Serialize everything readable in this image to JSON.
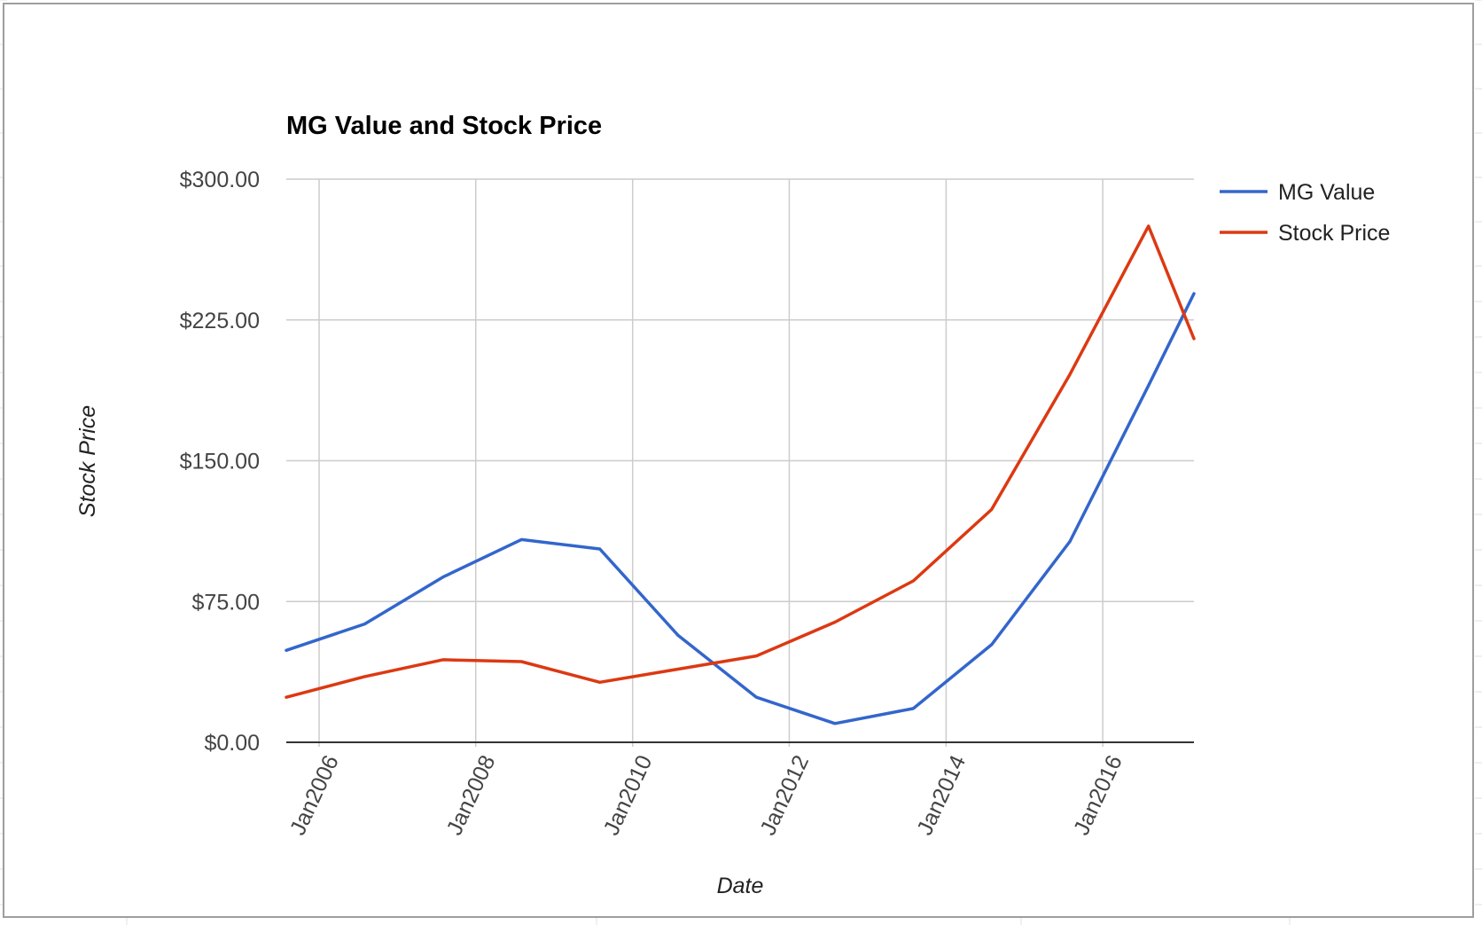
{
  "colors": {
    "mg_value": "#3366cc",
    "stock_price": "#dc3912",
    "grid": "#cccccc",
    "baseline": "#333333",
    "sheet_border": "#9e9e9e",
    "sheet_grid": "#e2e2e2"
  },
  "chart_data": {
    "type": "line",
    "title": "MG Value and Stock Price",
    "xlabel": "Date",
    "ylabel": "Stock Price",
    "y_ticks": [
      "$0.00",
      "$75.00",
      "$150.00",
      "$225.00",
      "$300.00"
    ],
    "y_tick_values": [
      0,
      75,
      150,
      225,
      300
    ],
    "ylim": [
      0,
      300
    ],
    "x_ticks": [
      "Jan2006",
      "Jan2008",
      "Jan2010",
      "Jan2012",
      "Jan2014",
      "Jan2016"
    ],
    "x_tick_dates": [
      "2006-01-01",
      "2008-01-01",
      "2010-01-01",
      "2012-01-01",
      "2014-01-01",
      "2016-01-01"
    ],
    "xlim": [
      "2005-08-01",
      "2017-03-01"
    ],
    "grid": true,
    "legend_position": "top-right",
    "series": [
      {
        "name": "MG Value",
        "color": "#3366cc",
        "points": [
          [
            "2005-08-01",
            49
          ],
          [
            "2006-08-01",
            63
          ],
          [
            "2007-08-01",
            88
          ],
          [
            "2008-08-01",
            108
          ],
          [
            "2009-08-01",
            103
          ],
          [
            "2010-08-01",
            57
          ],
          [
            "2011-08-01",
            24
          ],
          [
            "2012-08-01",
            10
          ],
          [
            "2013-08-01",
            18
          ],
          [
            "2014-08-01",
            52
          ],
          [
            "2015-08-01",
            107
          ],
          [
            "2016-08-01",
            190
          ],
          [
            "2017-03-01",
            239
          ]
        ]
      },
      {
        "name": "Stock Price",
        "color": "#dc3912",
        "points": [
          [
            "2005-08-01",
            24
          ],
          [
            "2006-08-01",
            35
          ],
          [
            "2007-08-01",
            44
          ],
          [
            "2008-08-01",
            43
          ],
          [
            "2009-08-01",
            32
          ],
          [
            "2010-08-01",
            39
          ],
          [
            "2011-08-01",
            46
          ],
          [
            "2012-08-01",
            64
          ],
          [
            "2013-08-01",
            86
          ],
          [
            "2014-08-01",
            124
          ],
          [
            "2015-08-01",
            196
          ],
          [
            "2016-08-01",
            275
          ],
          [
            "2017-03-01",
            215
          ]
        ]
      }
    ]
  }
}
